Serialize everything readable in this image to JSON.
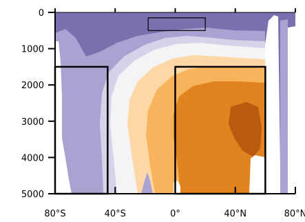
{
  "chart_data": {
    "type": "heatmap",
    "title": "",
    "xlabel": "",
    "ylabel": "",
    "xlim": [
      -80,
      80
    ],
    "ylim": [
      5000,
      0
    ],
    "y_inverted": true,
    "x_ticks": [
      {
        "value": -80,
        "label": "80°S"
      },
      {
        "value": -40,
        "label": "40°S"
      },
      {
        "value": 0,
        "label": "0°"
      },
      {
        "value": 40,
        "label": "40°N"
      },
      {
        "value": 80,
        "label": "80°N"
      }
    ],
    "y_ticks": [
      {
        "value": 0,
        "label": "0"
      },
      {
        "value": 1000,
        "label": "1000"
      },
      {
        "value": 2000,
        "label": "2000"
      },
      {
        "value": 3000,
        "label": "3000"
      },
      {
        "value": 4000,
        "label": "4000"
      },
      {
        "value": 5000,
        "label": "5000"
      }
    ],
    "palette": {
      "dark_purple": "#7b6fb0",
      "mid_purple": "#aaa2d0",
      "light_purple": "#d5d2ea",
      "near_white": "#f4f4f6",
      "light_orange": "#fdd8a6",
      "mid_orange": "#f7b45c",
      "orange": "#e1831e",
      "dark_orange": "#b85a0f",
      "land": "#ffffff"
    },
    "boxes": [
      {
        "name": "box-upper-tropics",
        "lon": [
          -18,
          20
        ],
        "depth": [
          150,
          500
        ]
      },
      {
        "name": "box-southern",
        "lon": [
          -80,
          -45
        ],
        "depth": [
          1500,
          5000
        ]
      },
      {
        "name": "box-northern",
        "lon": [
          0,
          60
        ],
        "depth": [
          1500,
          5000
        ]
      }
    ]
  }
}
